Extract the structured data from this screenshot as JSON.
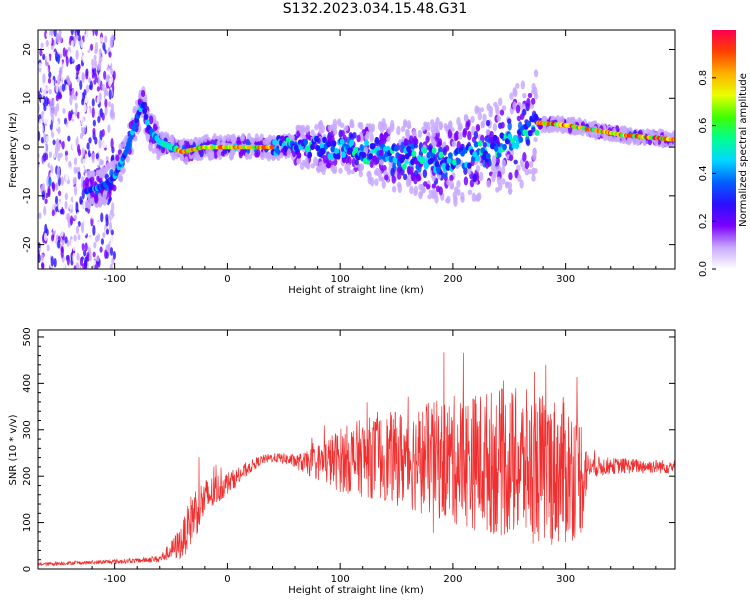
{
  "title": "S132.2023.034.15.48.G31",
  "colors": {
    "snr_line": "#f03030",
    "spectrogram_colormap": [
      "#ffffff",
      "#c8a8ff",
      "#7a00ff",
      "#2a10ff",
      "#0060ff",
      "#00d8ff",
      "#00ff90",
      "#40ff00",
      "#e8ff00",
      "#ffb000",
      "#ff4000",
      "#ff0050"
    ]
  },
  "chart_data": [
    {
      "type": "heatmap",
      "title": "",
      "xlabel": "Height of straight line (km)",
      "ylabel": "Frequency (Hz)",
      "xlim": [
        -168,
        397
      ],
      "ylim": [
        -25,
        24
      ],
      "xticks": [
        "-100",
        "0",
        "100",
        "200",
        "300"
      ],
      "xtick_values": [
        -100,
        0,
        100,
        200,
        300
      ],
      "yticks": [
        "-20",
        "-10",
        "0",
        "10",
        "20"
      ],
      "ytick_values": [
        -20,
        -10,
        0,
        10,
        20
      ],
      "colorbar": {
        "label": "Normalized spectral amplitude",
        "range": [
          0.0,
          1.0
        ],
        "ticks": [
          "0.0",
          "0.2",
          "0.4",
          "0.6",
          "0.8"
        ],
        "tick_values": [
          0.0,
          0.2,
          0.4,
          0.6,
          0.8
        ]
      },
      "ridge": {
        "x": [
          -125,
          -110,
          -100,
          -90,
          -80,
          -75,
          -70,
          -60,
          -50,
          -40,
          -20,
          0,
          50,
          100,
          150,
          200,
          250,
          275,
          300,
          325,
          350,
          397
        ],
        "frequency": [
          -9,
          -8,
          -6,
          -1,
          6,
          9,
          4,
          1,
          0,
          -1,
          0,
          0,
          0,
          0,
          -2,
          -3,
          1,
          5,
          4.5,
          3.5,
          2.5,
          1.5
        ]
      },
      "grid": false
    },
    {
      "type": "line",
      "title": "",
      "xlabel": "Height of straight line (km)",
      "ylabel": "SNR (10 * v/v)",
      "xlim": [
        -168,
        397
      ],
      "ylim": [
        0,
        515
      ],
      "xticks": [
        "-100",
        "0",
        "100",
        "200",
        "300"
      ],
      "xtick_values": [
        -100,
        0,
        100,
        200,
        300
      ],
      "yticks": [
        "0",
        "100",
        "200",
        "300",
        "400",
        "500"
      ],
      "ytick_values": [
        0,
        100,
        200,
        300,
        400,
        500
      ],
      "series": [
        {
          "x": [
            -168,
            -150,
            -120,
            -100,
            -80,
            -60,
            -50,
            -40,
            -30,
            -20,
            -10,
            0,
            10,
            20,
            30,
            40,
            50,
            60,
            70,
            80,
            90,
            100,
            120,
            140,
            160,
            180,
            200,
            220,
            240,
            260,
            280,
            300,
            315,
            320,
            340,
            360,
            380,
            397
          ],
          "values": [
            10,
            12,
            14,
            16,
            18,
            22,
            40,
            60,
            120,
            150,
            170,
            185,
            200,
            220,
            235,
            240,
            238,
            232,
            228,
            230,
            232,
            235,
            240,
            240,
            238,
            236,
            234,
            232,
            230,
            225,
            215,
            210,
            205,
            220,
            222,
            222,
            221,
            220
          ],
          "spread": [
            3,
            4,
            4,
            5,
            5,
            8,
            20,
            40,
            60,
            45,
            35,
            25,
            18,
            14,
            10,
            10,
            12,
            15,
            25,
            40,
            55,
            70,
            85,
            95,
            110,
            125,
            140,
            150,
            160,
            165,
            165,
            160,
            130,
            25,
            18,
            16,
            15,
            15
          ]
        }
      ],
      "grid": false
    }
  ]
}
